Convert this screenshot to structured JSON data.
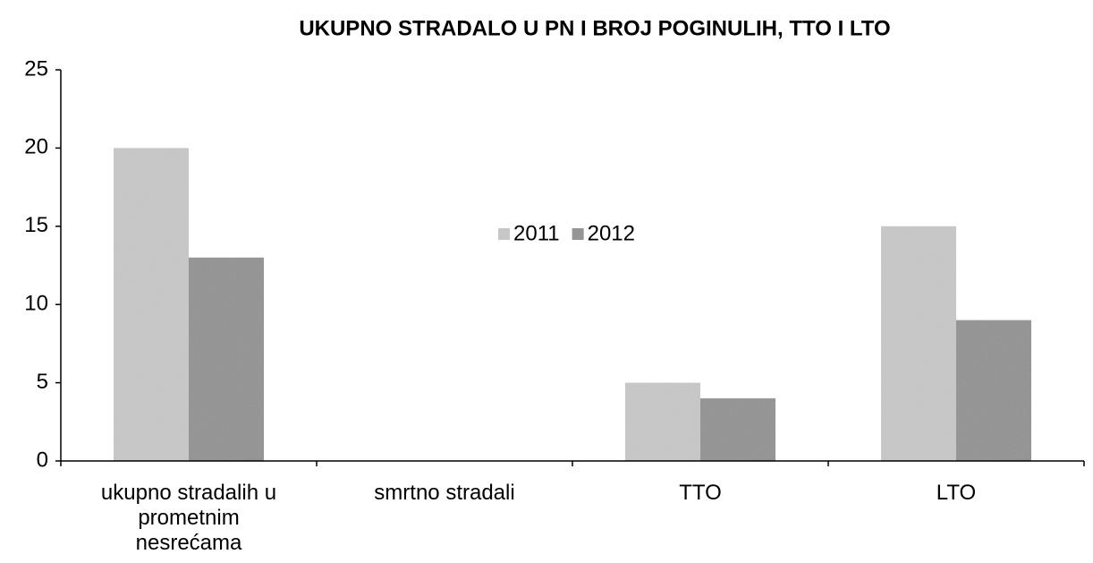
{
  "chart_data": {
    "type": "bar",
    "title": "UKUPNO STRADALO U PN I BROJ POGINULIH, TTO I LTO",
    "categories": [
      "ukupno stradalih u prometnim nesrećama",
      "smrtno stradali",
      "TTO",
      "LTO"
    ],
    "series": [
      {
        "name": "2011",
        "color": "#c9c9c9",
        "values": [
          20,
          0,
          5,
          15
        ]
      },
      {
        "name": "2012",
        "color": "#8c8c8c",
        "values": [
          13,
          0,
          4,
          9
        ]
      }
    ],
    "ylim": [
      0,
      25
    ],
    "yticks": [
      0,
      5,
      10,
      15,
      20,
      25
    ],
    "grid": false
  }
}
